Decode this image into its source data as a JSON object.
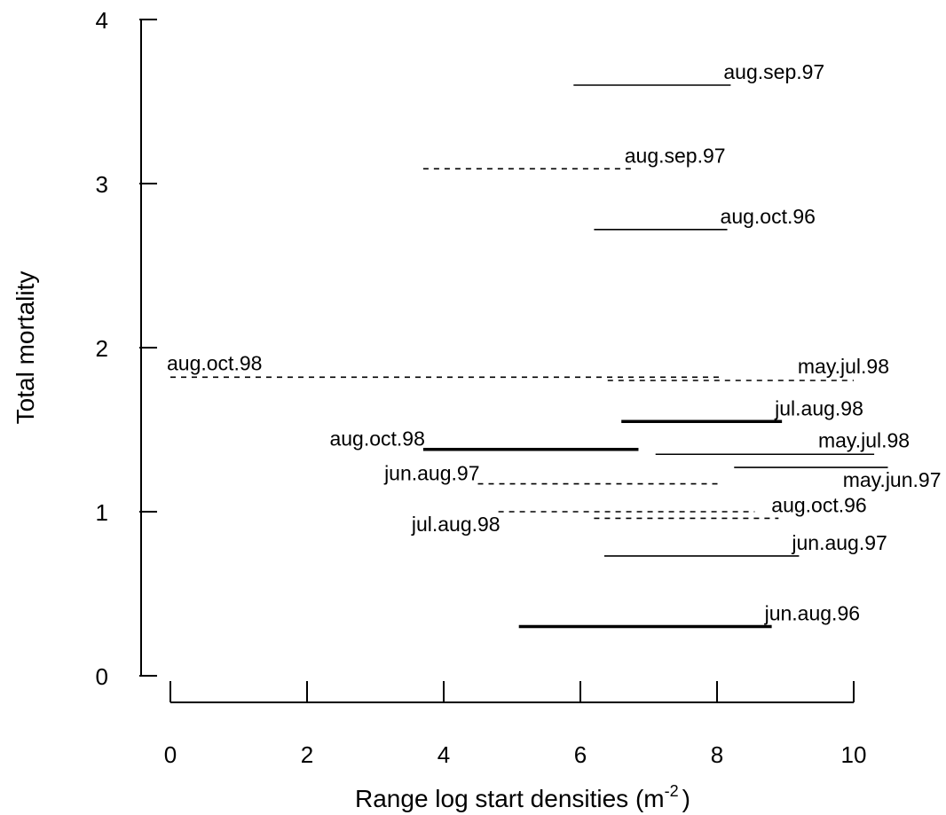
{
  "chart_data": {
    "type": "range-segments",
    "xlabel": "Range log start densities (m",
    "xlabel_sup": "-2",
    "xlabel_close": ")",
    "ylabel": "Total mortality",
    "xlim": [
      0,
      10
    ],
    "ylim": [
      0,
      4
    ],
    "x_ticks": [
      "0",
      "2",
      "4",
      "6",
      "8",
      "10"
    ],
    "y_ticks": [
      "0",
      "1",
      "2",
      "3",
      "4"
    ],
    "segments": [
      {
        "label": "aug.sep.97",
        "x_start": 5.9,
        "x_end": 8.2,
        "y": 3.6,
        "style": "solid-thin",
        "label_side": "right"
      },
      {
        "label": "aug.sep.97",
        "x_start": 3.7,
        "x_end": 6.75,
        "y": 3.09,
        "style": "dashed",
        "label_side": "right"
      },
      {
        "label": "aug.oct.96",
        "x_start": 6.2,
        "x_end": 8.15,
        "y": 2.72,
        "style": "solid-thin",
        "label_side": "right"
      },
      {
        "label": "aug.oct.98",
        "x_start": 0.0,
        "x_end": 8.1,
        "y": 1.82,
        "style": "dashed",
        "label_side": "above-left"
      },
      {
        "label": "may.jul.98",
        "x_start": 6.4,
        "x_end": 10.0,
        "y": 1.8,
        "style": "dashed",
        "label_side": "above-right"
      },
      {
        "label": "jul.aug.98",
        "x_start": 6.6,
        "x_end": 8.95,
        "y": 1.55,
        "style": "solid-thick",
        "label_side": "right"
      },
      {
        "label": "aug.oct.98",
        "x_start": 3.7,
        "x_end": 6.85,
        "y": 1.38,
        "style": "solid-thick",
        "label_side": "left"
      },
      {
        "label": "may.jul.98",
        "x_start": 7.1,
        "x_end": 10.3,
        "y": 1.35,
        "style": "solid-thin",
        "label_side": "above-right"
      },
      {
        "label": "may.jun.97",
        "x_start": 8.25,
        "x_end": 10.5,
        "y": 1.27,
        "style": "solid-thin",
        "label_side": "below-right"
      },
      {
        "label": "jun.aug.97",
        "x_start": 4.5,
        "x_end": 8.05,
        "y": 1.17,
        "style": "dashed",
        "label_side": "left"
      },
      {
        "label": "jul.aug.98",
        "x_start": 4.8,
        "x_end": 8.55,
        "y": 1.0,
        "style": "dashed",
        "label_side": "below-left"
      },
      {
        "label": "aug.oct.96",
        "x_start": 6.2,
        "x_end": 8.9,
        "y": 0.96,
        "style": "dashed",
        "label_side": "right"
      },
      {
        "label": "jun.aug.97",
        "x_start": 6.35,
        "x_end": 9.2,
        "y": 0.73,
        "style": "solid-thin",
        "label_side": "right"
      },
      {
        "label": "jun.aug.96",
        "x_start": 5.1,
        "x_end": 8.8,
        "y": 0.3,
        "style": "solid-thick",
        "label_side": "right"
      }
    ]
  }
}
